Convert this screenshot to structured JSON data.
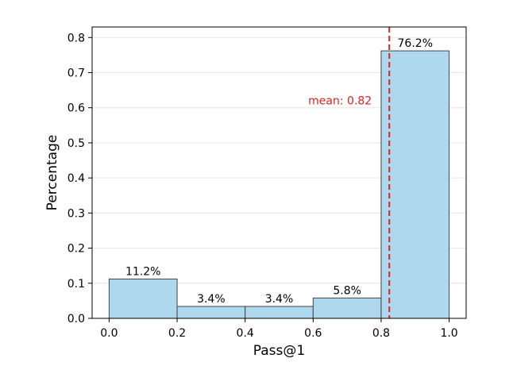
{
  "chart_data": {
    "type": "bar",
    "title": "",
    "xlabel": "Pass@1",
    "ylabel": "Percentage",
    "xlim": [
      -0.05,
      1.05
    ],
    "ylim": [
      0,
      0.83
    ],
    "grid": {
      "y": true,
      "x": false
    },
    "bars": [
      {
        "x0": 0.0,
        "x1": 0.2,
        "value": 0.112,
        "label": "11.2%"
      },
      {
        "x0": 0.2,
        "x1": 0.4,
        "value": 0.034,
        "label": "3.4%"
      },
      {
        "x0": 0.4,
        "x1": 0.6,
        "value": 0.034,
        "label": "3.4%"
      },
      {
        "x0": 0.6,
        "x1": 0.8,
        "value": 0.058,
        "label": "5.8%"
      },
      {
        "x0": 0.8,
        "x1": 1.0,
        "value": 0.762,
        "label": "76.2%"
      }
    ],
    "x_ticks": [
      {
        "value": 0.0,
        "label": "0.0"
      },
      {
        "value": 0.2,
        "label": "0.2"
      },
      {
        "value": 0.4,
        "label": "0.4"
      },
      {
        "value": 0.6,
        "label": "0.6"
      },
      {
        "value": 0.8,
        "label": "0.8"
      },
      {
        "value": 1.0,
        "label": "1.0"
      }
    ],
    "y_ticks": [
      {
        "value": 0.0,
        "label": "0.0"
      },
      {
        "value": 0.1,
        "label": "0.1"
      },
      {
        "value": 0.2,
        "label": "0.2"
      },
      {
        "value": 0.3,
        "label": "0.3"
      },
      {
        "value": 0.4,
        "label": "0.4"
      },
      {
        "value": 0.5,
        "label": "0.5"
      },
      {
        "value": 0.6,
        "label": "0.6"
      },
      {
        "value": 0.7,
        "label": "0.7"
      },
      {
        "value": 0.8,
        "label": "0.8"
      }
    ],
    "mean_line": {
      "value": 0.824,
      "label": "mean: 0.82"
    },
    "colors": {
      "bar_fill": "#add8ee",
      "bar_edge": "#444444",
      "mean_line": "#dd2222",
      "grid": "#e6e6e6"
    }
  }
}
